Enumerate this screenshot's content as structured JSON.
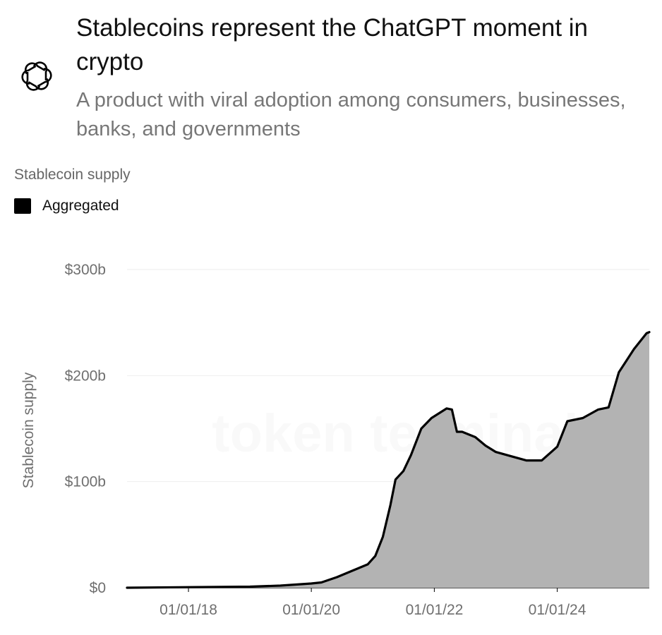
{
  "header": {
    "logo_icon": "openai-logo-icon",
    "title": "Stablecoins represent the ChatGPT moment in crypto",
    "subtitle": "A product with viral adoption among consumers, businesses, banks, and governments"
  },
  "chart_label": "Stablecoin supply",
  "legend": {
    "label": "Aggregated",
    "color": "#000000"
  },
  "watermark": "token terminal",
  "chart_data": {
    "type": "area",
    "title": "",
    "ylabel": "Stablecoin supply",
    "xlabel": "",
    "ylim": [
      0,
      300
    ],
    "xlim": [
      "2017-01-01",
      "2025-07-01"
    ],
    "y_ticks": [
      {
        "value": 0,
        "label": "$0"
      },
      {
        "value": 100,
        "label": "$100b"
      },
      {
        "value": 200,
        "label": "$200b"
      },
      {
        "value": 300,
        "label": "$300b"
      }
    ],
    "x_ticks": [
      {
        "value": "2018-01-01",
        "label": "01/01/18"
      },
      {
        "value": "2020-01-01",
        "label": "01/01/20"
      },
      {
        "value": "2022-01-01",
        "label": "01/01/22"
      },
      {
        "value": "2024-01-01",
        "label": "01/01/24"
      }
    ],
    "grid": true,
    "series": [
      {
        "name": "Aggregated",
        "line_color": "#000000",
        "fill_color": "#b3b3b3",
        "x": [
          "2017-01-01",
          "2018-01-01",
          "2018-07-01",
          "2019-01-01",
          "2019-07-01",
          "2020-01-01",
          "2020-03-01",
          "2020-06-01",
          "2020-09-01",
          "2020-12-01",
          "2021-01-15",
          "2021-03-01",
          "2021-04-15",
          "2021-05-15",
          "2021-07-01",
          "2021-08-15",
          "2021-10-15",
          "2021-12-15",
          "2022-03-15",
          "2022-04-15",
          "2022-05-15",
          "2022-06-15",
          "2022-09-01",
          "2022-11-01",
          "2023-01-01",
          "2023-04-01",
          "2023-07-01",
          "2023-10-01",
          "2024-01-01",
          "2024-03-01",
          "2024-06-01",
          "2024-09-01",
          "2024-11-01",
          "2025-01-01",
          "2025-04-01",
          "2025-06-15"
        ],
        "y": [
          0,
          0.5,
          0.8,
          1,
          2,
          4,
          5,
          10,
          16,
          22,
          30,
          48,
          78,
          102,
          110,
          125,
          150,
          160,
          169,
          168,
          147,
          147,
          142,
          134,
          128,
          124,
          120,
          120,
          133,
          157,
          160,
          168,
          170,
          203,
          225,
          240
        ]
      }
    ]
  }
}
